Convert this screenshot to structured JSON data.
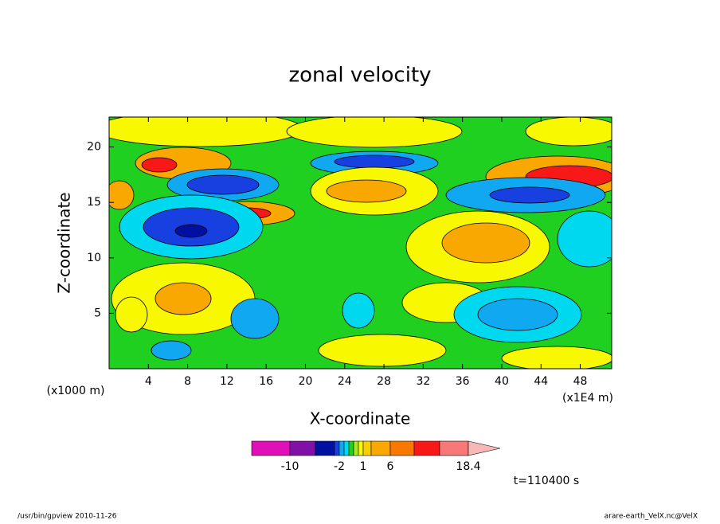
{
  "chart_data": {
    "type": "contour",
    "title": "zonal velocity",
    "x_label": "X-coordinate",
    "y_label": "Z-coordinate",
    "x_unit": "(x1E4 m)",
    "y_unit": "(x1000 m)",
    "xlim": [
      0,
      51.2
    ],
    "xticks": [
      4,
      8,
      12,
      16,
      20,
      24,
      28,
      32,
      36,
      40,
      44,
      48
    ],
    "ylim": [
      0,
      22.7
    ],
    "yticks": [
      5,
      10,
      15,
      20
    ],
    "colorbar": {
      "colors": [
        "#e010b8",
        "#8010a8",
        "#0010a0",
        "#1840e0",
        "#10a8f0",
        "#00d8f0",
        "#20d020",
        "#a8e820",
        "#f8f800",
        "#f8d000",
        "#f8a800",
        "#f87800",
        "#f81818",
        "#f87878",
        "#f8b8b8"
      ],
      "ticks": [
        -10,
        -2,
        1,
        6,
        18.4
      ]
    },
    "time_label": "t=110400 s",
    "footer_left": "/usr/bin/gpview  2010-11-26",
    "footer_right": "arare-earth_VelX.nc@VelX"
  }
}
